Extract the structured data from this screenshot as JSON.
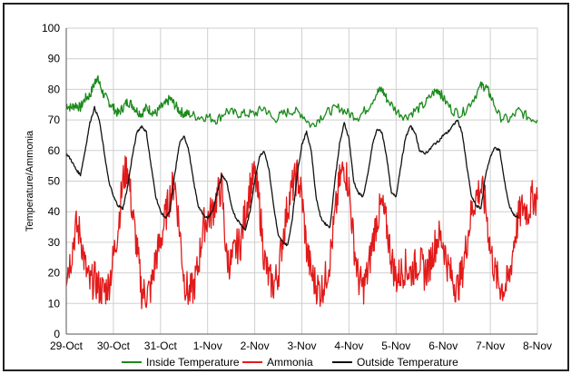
{
  "chart_data": {
    "type": "line",
    "title": "",
    "xlabel": "",
    "ylabel": "Temperature/Ammonia",
    "ylim": [
      0,
      100
    ],
    "yticks": [
      0,
      10,
      20,
      30,
      40,
      50,
      60,
      70,
      80,
      90,
      100
    ],
    "xticks": [
      "29-Oct",
      "30-Oct",
      "31-Oct",
      "1-Nov",
      "2-Nov",
      "3-Nov",
      "4-Nov",
      "5-Nov",
      "6-Nov",
      "7-Nov",
      "8-Nov"
    ],
    "xlim_days": [
      0,
      10
    ],
    "grid": "both",
    "legend_placement": "bottom",
    "series": [
      {
        "name": "Inside Temperature",
        "color": "#1a8a1a",
        "points": [
          [
            0,
            75
          ],
          [
            0.1,
            74
          ],
          [
            0.2,
            75
          ],
          [
            0.3,
            74
          ],
          [
            0.4,
            77
          ],
          [
            0.5,
            78
          ],
          [
            0.6,
            82
          ],
          [
            0.65,
            84
          ],
          [
            0.7,
            82
          ],
          [
            0.8,
            78
          ],
          [
            0.9,
            76
          ],
          [
            1.0,
            74
          ],
          [
            1.1,
            72
          ],
          [
            1.2,
            74
          ],
          [
            1.3,
            76
          ],
          [
            1.4,
            75
          ],
          [
            1.5,
            73
          ],
          [
            1.6,
            72
          ],
          [
            1.7,
            74
          ],
          [
            1.8,
            73
          ],
          [
            1.9,
            72
          ],
          [
            2.0,
            74
          ],
          [
            2.1,
            75
          ],
          [
            2.2,
            77
          ],
          [
            2.3,
            75
          ],
          [
            2.4,
            73
          ],
          [
            2.5,
            72
          ],
          [
            2.6,
            72
          ],
          [
            2.8,
            71
          ],
          [
            3.0,
            71
          ],
          [
            3.2,
            70
          ],
          [
            3.4,
            73
          ],
          [
            3.6,
            72
          ],
          [
            3.8,
            72
          ],
          [
            4.0,
            72
          ],
          [
            4.2,
            74
          ],
          [
            4.4,
            70
          ],
          [
            4.6,
            72
          ],
          [
            4.8,
            73
          ],
          [
            5.0,
            72
          ],
          [
            5.2,
            68
          ],
          [
            5.4,
            71
          ],
          [
            5.6,
            73
          ],
          [
            5.8,
            74
          ],
          [
            6.0,
            72
          ],
          [
            6.2,
            71
          ],
          [
            6.4,
            74
          ],
          [
            6.6,
            79
          ],
          [
            6.7,
            80
          ],
          [
            6.8,
            77
          ],
          [
            7.0,
            73
          ],
          [
            7.2,
            71
          ],
          [
            7.4,
            73
          ],
          [
            7.6,
            75
          ],
          [
            7.8,
            79
          ],
          [
            7.9,
            80
          ],
          [
            8.0,
            77
          ],
          [
            8.2,
            73
          ],
          [
            8.4,
            72
          ],
          [
            8.6,
            76
          ],
          [
            8.8,
            81
          ],
          [
            8.9,
            81
          ],
          [
            9.0,
            78
          ],
          [
            9.2,
            71
          ],
          [
            9.4,
            70
          ],
          [
            9.6,
            73
          ],
          [
            9.8,
            71
          ],
          [
            10.0,
            70
          ]
        ]
      },
      {
        "name": "Ammonia",
        "color": "#e21a1a",
        "points": [
          [
            0,
            20
          ],
          [
            0.1,
            25
          ],
          [
            0.2,
            35
          ],
          [
            0.3,
            33
          ],
          [
            0.4,
            22
          ],
          [
            0.5,
            16
          ],
          [
            0.6,
            18
          ],
          [
            0.7,
            15
          ],
          [
            0.8,
            14
          ],
          [
            0.9,
            16
          ],
          [
            1.0,
            25
          ],
          [
            1.1,
            35
          ],
          [
            1.2,
            50
          ],
          [
            1.3,
            55
          ],
          [
            1.4,
            40
          ],
          [
            1.5,
            28
          ],
          [
            1.6,
            14
          ],
          [
            1.7,
            13
          ],
          [
            1.8,
            15
          ],
          [
            1.9,
            25
          ],
          [
            2.0,
            30
          ],
          [
            2.1,
            38
          ],
          [
            2.2,
            45
          ],
          [
            2.3,
            50
          ],
          [
            2.4,
            35
          ],
          [
            2.5,
            18
          ],
          [
            2.6,
            13
          ],
          [
            2.7,
            15
          ],
          [
            2.8,
            22
          ],
          [
            2.9,
            35
          ],
          [
            3.0,
            38
          ],
          [
            3.1,
            40
          ],
          [
            3.2,
            45
          ],
          [
            3.3,
            48
          ],
          [
            3.4,
            25
          ],
          [
            3.5,
            23
          ],
          [
            3.6,
            28
          ],
          [
            3.7,
            30
          ],
          [
            3.8,
            40
          ],
          [
            3.9,
            48
          ],
          [
            4.0,
            52
          ],
          [
            4.1,
            42
          ],
          [
            4.2,
            25
          ],
          [
            4.3,
            18
          ],
          [
            4.4,
            16
          ],
          [
            4.5,
            20
          ],
          [
            4.6,
            32
          ],
          [
            4.7,
            42
          ],
          [
            4.8,
            48
          ],
          [
            4.9,
            52
          ],
          [
            5.0,
            45
          ],
          [
            5.1,
            28
          ],
          [
            5.2,
            20
          ],
          [
            5.3,
            16
          ],
          [
            5.4,
            14
          ],
          [
            5.5,
            18
          ],
          [
            5.6,
            25
          ],
          [
            5.7,
            38
          ],
          [
            5.8,
            50
          ],
          [
            5.9,
            55
          ],
          [
            6.0,
            48
          ],
          [
            6.1,
            30
          ],
          [
            6.2,
            18
          ],
          [
            6.3,
            15
          ],
          [
            6.4,
            20
          ],
          [
            6.5,
            30
          ],
          [
            6.6,
            38
          ],
          [
            6.7,
            42
          ],
          [
            6.8,
            35
          ],
          [
            6.9,
            25
          ],
          [
            7.0,
            18
          ],
          [
            7.1,
            20
          ],
          [
            7.2,
            22
          ],
          [
            7.3,
            20
          ],
          [
            7.4,
            22
          ],
          [
            7.5,
            24
          ],
          [
            7.6,
            20
          ],
          [
            7.7,
            22
          ],
          [
            7.8,
            28
          ],
          [
            7.9,
            32
          ],
          [
            8.0,
            30
          ],
          [
            8.1,
            22
          ],
          [
            8.2,
            18
          ],
          [
            8.3,
            15
          ],
          [
            8.4,
            20
          ],
          [
            8.5,
            30
          ],
          [
            8.6,
            40
          ],
          [
            8.7,
            45
          ],
          [
            8.8,
            48
          ],
          [
            8.9,
            42
          ],
          [
            9.0,
            28
          ],
          [
            9.1,
            20
          ],
          [
            9.2,
            16
          ],
          [
            9.3,
            15
          ],
          [
            9.4,
            18
          ],
          [
            9.5,
            30
          ],
          [
            9.6,
            38
          ],
          [
            9.7,
            42
          ],
          [
            9.8,
            40
          ],
          [
            9.9,
            45
          ],
          [
            10.0,
            44
          ]
        ]
      },
      {
        "name": "Outside Temperature",
        "color": "#111111",
        "points": [
          [
            0,
            59
          ],
          [
            0.1,
            57
          ],
          [
            0.2,
            54
          ],
          [
            0.3,
            52
          ],
          [
            0.4,
            60
          ],
          [
            0.5,
            69
          ],
          [
            0.6,
            74
          ],
          [
            0.7,
            70
          ],
          [
            0.8,
            60
          ],
          [
            0.9,
            50
          ],
          [
            1.0,
            45
          ],
          [
            1.1,
            42
          ],
          [
            1.2,
            41
          ],
          [
            1.3,
            48
          ],
          [
            1.4,
            58
          ],
          [
            1.5,
            66
          ],
          [
            1.6,
            68
          ],
          [
            1.7,
            66
          ],
          [
            1.8,
            55
          ],
          [
            1.9,
            45
          ],
          [
            2.0,
            40
          ],
          [
            2.1,
            38
          ],
          [
            2.2,
            40
          ],
          [
            2.3,
            52
          ],
          [
            2.4,
            62
          ],
          [
            2.5,
            65
          ],
          [
            2.6,
            60
          ],
          [
            2.7,
            50
          ],
          [
            2.8,
            42
          ],
          [
            2.9,
            39
          ],
          [
            3.0,
            38
          ],
          [
            3.1,
            40
          ],
          [
            3.2,
            46
          ],
          [
            3.3,
            52
          ],
          [
            3.4,
            50
          ],
          [
            3.5,
            42
          ],
          [
            3.6,
            38
          ],
          [
            3.7,
            36
          ],
          [
            3.8,
            34
          ],
          [
            3.9,
            40
          ],
          [
            4.0,
            50
          ],
          [
            4.1,
            58
          ],
          [
            4.2,
            60
          ],
          [
            4.3,
            54
          ],
          [
            4.4,
            42
          ],
          [
            4.5,
            32
          ],
          [
            4.6,
            30
          ],
          [
            4.7,
            29
          ],
          [
            4.8,
            38
          ],
          [
            4.9,
            52
          ],
          [
            5.0,
            62
          ],
          [
            5.1,
            66
          ],
          [
            5.2,
            60
          ],
          [
            5.3,
            45
          ],
          [
            5.4,
            38
          ],
          [
            5.5,
            36
          ],
          [
            5.6,
            35
          ],
          [
            5.7,
            50
          ],
          [
            5.8,
            62
          ],
          [
            5.9,
            69
          ],
          [
            6.0,
            64
          ],
          [
            6.1,
            50
          ],
          [
            6.2,
            46
          ],
          [
            6.3,
            45
          ],
          [
            6.4,
            52
          ],
          [
            6.5,
            62
          ],
          [
            6.6,
            67
          ],
          [
            6.7,
            66
          ],
          [
            6.8,
            58
          ],
          [
            6.9,
            46
          ],
          [
            7.0,
            45
          ],
          [
            7.1,
            55
          ],
          [
            7.2,
            64
          ],
          [
            7.3,
            68
          ],
          [
            7.4,
            66
          ],
          [
            7.5,
            60
          ],
          [
            7.6,
            59
          ],
          [
            7.7,
            60
          ],
          [
            7.8,
            62
          ],
          [
            7.9,
            63
          ],
          [
            8.0,
            65
          ],
          [
            8.1,
            66
          ],
          [
            8.2,
            68
          ],
          [
            8.3,
            70
          ],
          [
            8.4,
            66
          ],
          [
            8.5,
            55
          ],
          [
            8.6,
            45
          ],
          [
            8.7,
            42
          ],
          [
            8.8,
            41
          ],
          [
            8.9,
            52
          ],
          [
            9.0,
            58
          ],
          [
            9.1,
            61
          ],
          [
            9.2,
            60
          ],
          [
            9.3,
            50
          ],
          [
            9.4,
            42
          ],
          [
            9.5,
            39
          ],
          [
            9.6,
            38
          ]
        ]
      }
    ]
  }
}
